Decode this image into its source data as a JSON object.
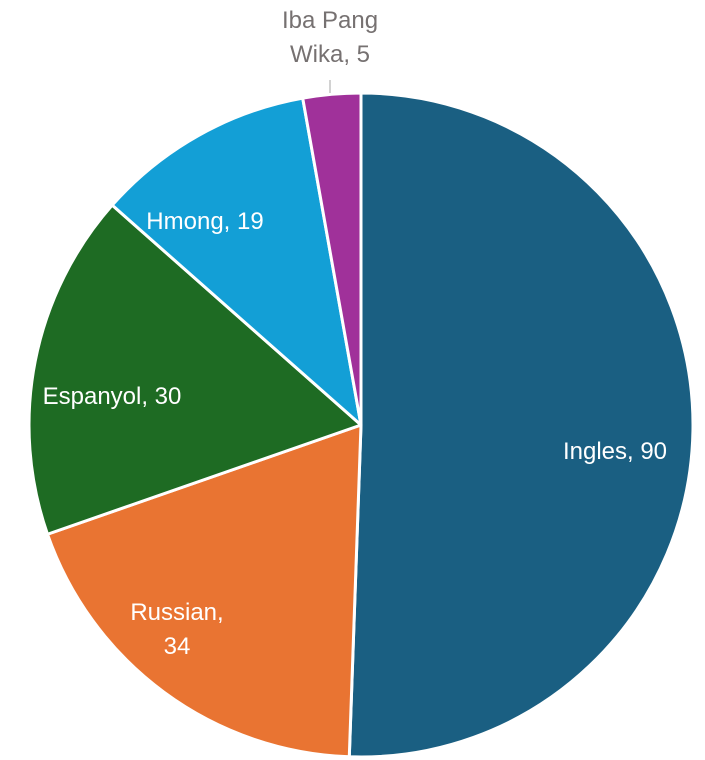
{
  "chart_data": {
    "type": "pie",
    "categories": [
      "Ingles",
      "Russian",
      "Espanyol",
      "Hmong",
      "Iba Pang Wika"
    ],
    "values": [
      90,
      34,
      30,
      19,
      5
    ],
    "value_labels": [
      "Ingles, 90",
      "Russian, 34",
      "Espanyol, 30",
      "Hmong, 19",
      "Iba Pang Wika, 5"
    ],
    "colors": [
      "#1a5f82",
      "#e97432",
      "#1e6b23",
      "#139fd6",
      "#a0319a"
    ]
  }
}
